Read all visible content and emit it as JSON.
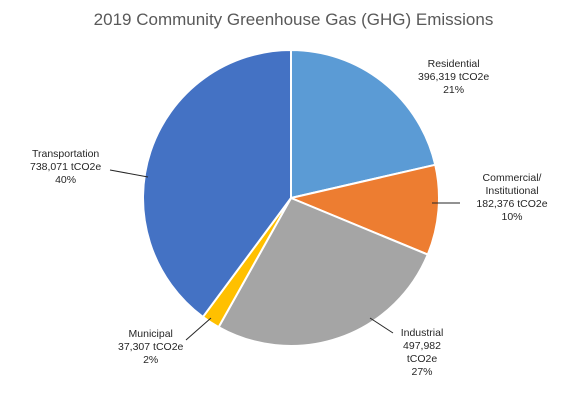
{
  "chart_data": {
    "type": "pie",
    "title": "2019 Community Greenhouse Gas (GHG) Emissions",
    "slices": [
      {
        "name": "Residential",
        "value": 396319,
        "value_text": "396,319 tCO2e",
        "percent_text": "21%",
        "color": "#5B9BD5"
      },
      {
        "name": "Commercial/ Institutional",
        "value": 182376,
        "value_text": "182,376 tCO2e",
        "percent_text": "10%",
        "color": "#ED7D31"
      },
      {
        "name": "Industrial",
        "value": 497982,
        "value_text": "497,982 tCO2e",
        "percent_text": "27%",
        "color": "#A5A5A5"
      },
      {
        "name": "Municipal",
        "value": 37307,
        "value_text": "37,307 tCO2e",
        "percent_text": "2%",
        "color": "#FFC000"
      },
      {
        "name": "Transportation",
        "value": 738071,
        "value_text": "738,071 tCO2e",
        "percent_text": "40%",
        "color": "#4472C4"
      }
    ]
  }
}
